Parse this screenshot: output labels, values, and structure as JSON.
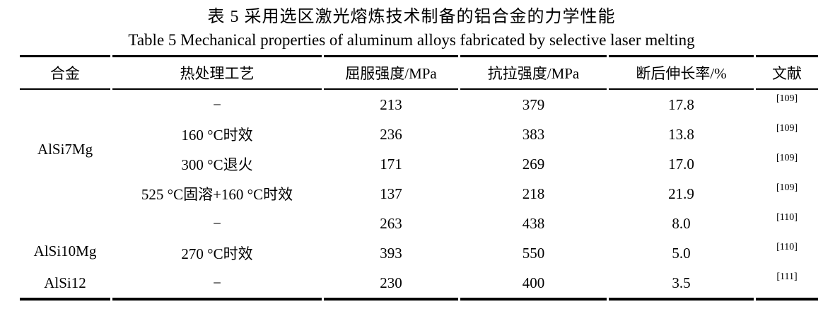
{
  "titles": {
    "chinese": "表 5 采用选区激光熔炼技术制备的铝合金的力学性能",
    "english": "Table 5 Mechanical properties of aluminum alloys fabricated by selective laser melting"
  },
  "table": {
    "headers": [
      "合金",
      "热处理工艺",
      "屈服强度/MPa",
      "抗拉强度/MPa",
      "断后伸长率/%",
      "文献"
    ],
    "alloys": [
      "AlSi7Mg",
      "AlSi10Mg",
      "AlSi12"
    ],
    "rows": [
      [
        "−",
        "213",
        "379",
        "17.8",
        "[109]"
      ],
      [
        "160 °C时效",
        "236",
        "383",
        "13.8",
        "[109]"
      ],
      [
        "300 °C退火",
        "171",
        "269",
        "17.0",
        "[109]"
      ],
      [
        "525 °C固溶+160 °C时效",
        "137",
        "218",
        "21.9",
        "[109]"
      ],
      [
        "−",
        "263",
        "438",
        "8.0",
        "[110]"
      ],
      [
        "270 °C时效",
        "393",
        "550",
        "5.0",
        "[110]"
      ],
      [
        "−",
        "230",
        "400",
        "3.5",
        "[111]"
      ]
    ],
    "colors": {
      "text": "#000000",
      "background": "#ffffff",
      "rule": "#000000"
    }
  }
}
